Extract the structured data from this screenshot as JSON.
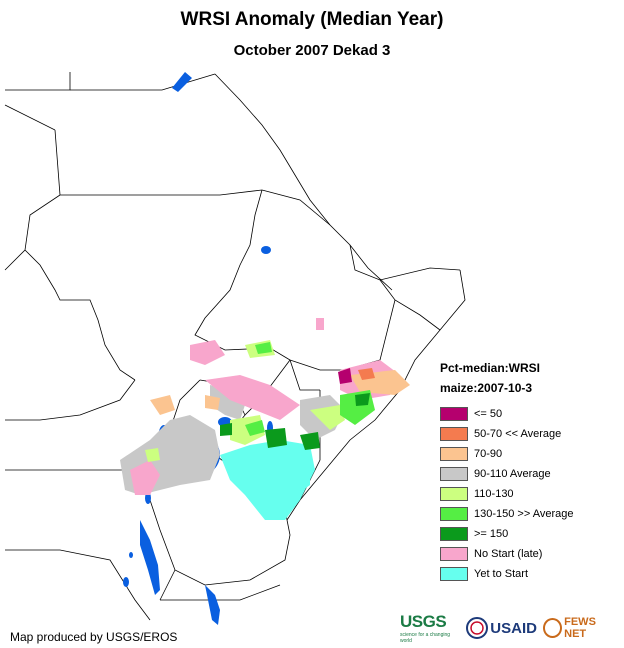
{
  "title": "WRSI Anomaly (Median Year)",
  "subtitle": "October 2007 Dekad 3",
  "legend": {
    "heading1": "Pct-median:WRSI",
    "heading2": "maize:2007-10-3",
    "items": [
      {
        "label": "<= 50",
        "color": "#b5006e"
      },
      {
        "label": "50-70 << Average",
        "color": "#f47b4f"
      },
      {
        "label": "70-90",
        "color": "#fbc490"
      },
      {
        "label": "90-110 Average",
        "color": "#c8c8c8"
      },
      {
        "label": "110-130",
        "color": "#ccff80"
      },
      {
        "label": "130-150 >> Average",
        "color": "#55ee44"
      },
      {
        "label": ">= 150",
        "color": "#0b9a1c"
      },
      {
        "label": "No Start (late)",
        "color": "#f8a6cc"
      },
      {
        "label": "Yet to Start",
        "color": "#66ffee"
      }
    ]
  },
  "water_color": "#0a5fe0",
  "credit": "Map produced by USGS/EROS",
  "logos": {
    "usgs": "USGS",
    "usgs_tagline": "science for a changing world",
    "usaid": "USAID",
    "fews": "FEWS NET"
  }
}
